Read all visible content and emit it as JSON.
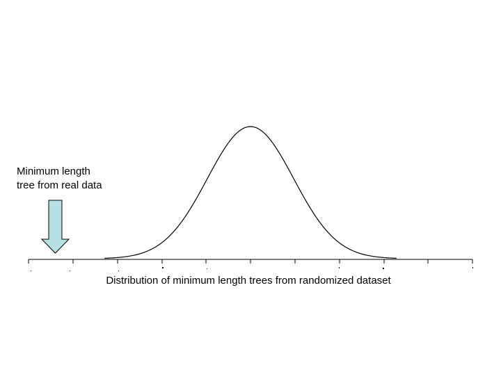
{
  "annotation": {
    "line1": "Minimum length",
    "line2": "tree from real data"
  },
  "axis": {
    "caption": "Distribution of minimum length trees from randomized dataset"
  },
  "colors": {
    "arrow_fill": "#b7e0e4",
    "arrow_stroke": "#000000",
    "curve_stroke": "#000000",
    "axis_stroke": "#000000",
    "background": "#ffffff"
  }
}
